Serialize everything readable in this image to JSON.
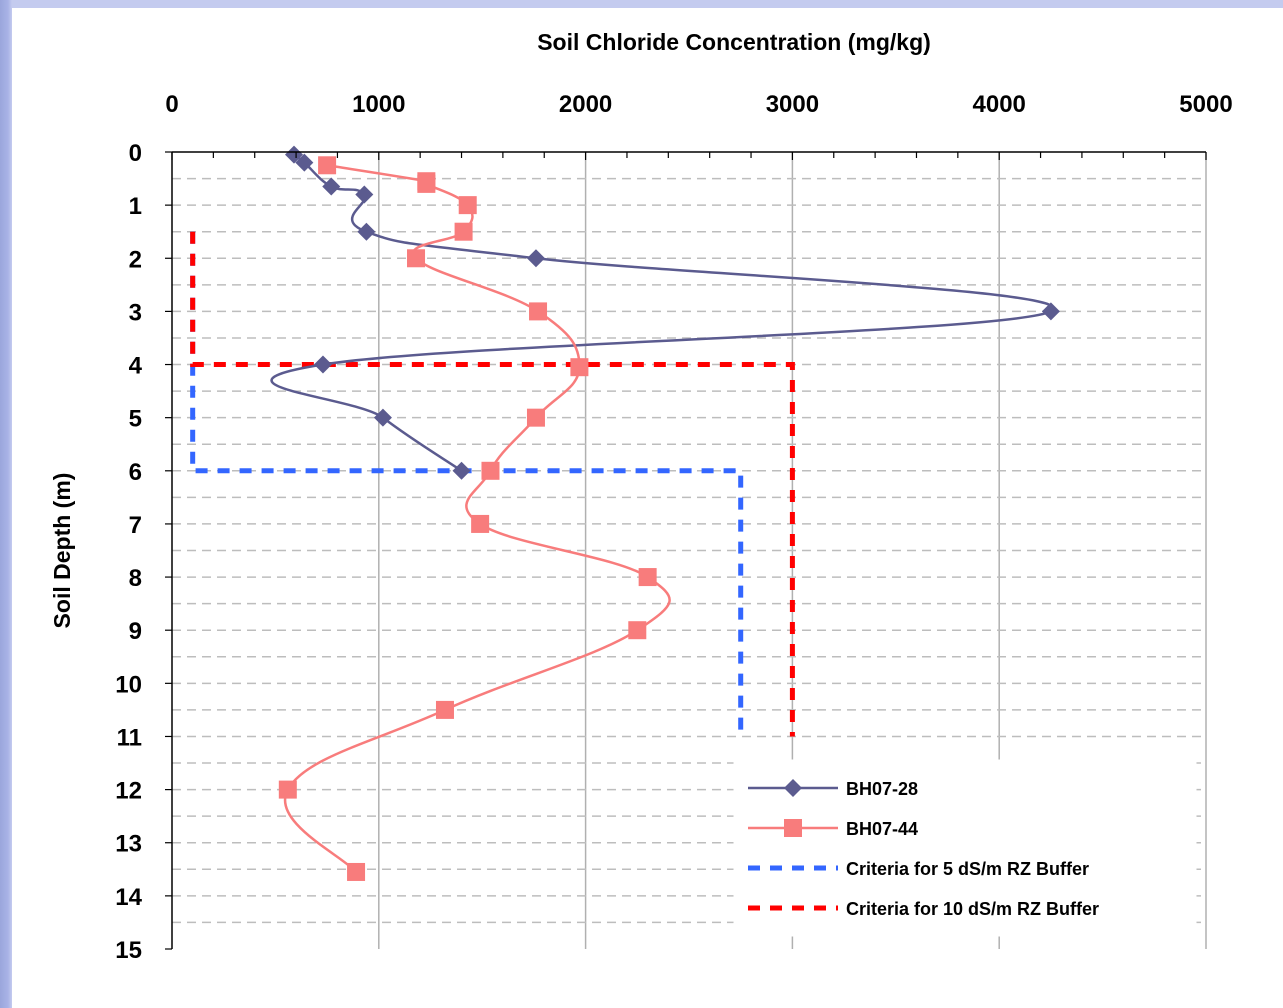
{
  "chart_data": {
    "type": "line",
    "title": "",
    "xlabel": "Soil Chloride Concentration (mg/kg)",
    "ylabel": "Soil Depth (m)",
    "xlim": [
      0,
      5000
    ],
    "ylim": [
      0,
      15
    ],
    "x_axis_position": "top",
    "y_axis_inverted": true,
    "x_ticks": [
      "0",
      "1000",
      "2000",
      "3000",
      "4000",
      "5000"
    ],
    "y_ticks": [
      "0",
      "1",
      "2",
      "3",
      "4",
      "5",
      "6",
      "7",
      "8",
      "9",
      "10",
      "11",
      "12",
      "13",
      "14",
      "15"
    ],
    "grid": {
      "vertical": true,
      "horizontal_dashed_every": 0.5
    },
    "legend_position": "bottom-right",
    "series": [
      {
        "name": "BH07-28",
        "color": "#5b5b8f",
        "marker": "diamond",
        "line": "smooth",
        "points": [
          [
            590,
            0.05
          ],
          [
            640,
            0.2
          ],
          [
            770,
            0.65
          ],
          [
            930,
            0.8
          ],
          [
            940,
            1.5
          ],
          [
            1760,
            2.0
          ],
          [
            4250,
            3.0
          ],
          [
            730,
            4.0
          ],
          [
            1020,
            5.0
          ],
          [
            1400,
            6.0
          ]
        ]
      },
      {
        "name": "BH07-44",
        "color": "#f87c7c",
        "marker": "square",
        "line": "smooth",
        "points": [
          [
            750,
            0.25
          ],
          [
            1230,
            0.55
          ],
          [
            1230,
            0.6
          ],
          [
            1430,
            1.0
          ],
          [
            1410,
            1.5
          ],
          [
            1180,
            2.0
          ],
          [
            1770,
            3.0
          ],
          [
            1970,
            4.05
          ],
          [
            1760,
            5.0
          ],
          [
            1540,
            6.0
          ],
          [
            1490,
            7.0
          ],
          [
            2300,
            8.0
          ],
          [
            2250,
            9.0
          ],
          [
            1320,
            10.5
          ],
          [
            560,
            12.0
          ],
          [
            890,
            13.55
          ]
        ]
      },
      {
        "name": "Criteria for 5 dS/m RZ Buffer",
        "color": "#3366ff",
        "marker": "none",
        "line": "dashed",
        "points": [
          [
            100,
            1.5
          ],
          [
            100,
            6.0
          ],
          [
            2750,
            6.0
          ],
          [
            2750,
            11.0
          ]
        ]
      },
      {
        "name": "Criteria for 10 dS/m RZ Buffer",
        "color": "#ff0000",
        "marker": "none",
        "line": "dashed",
        "points": [
          [
            100,
            1.5
          ],
          [
            100,
            4.0
          ],
          [
            3000,
            4.0
          ],
          [
            3000,
            11.0
          ]
        ]
      }
    ]
  }
}
